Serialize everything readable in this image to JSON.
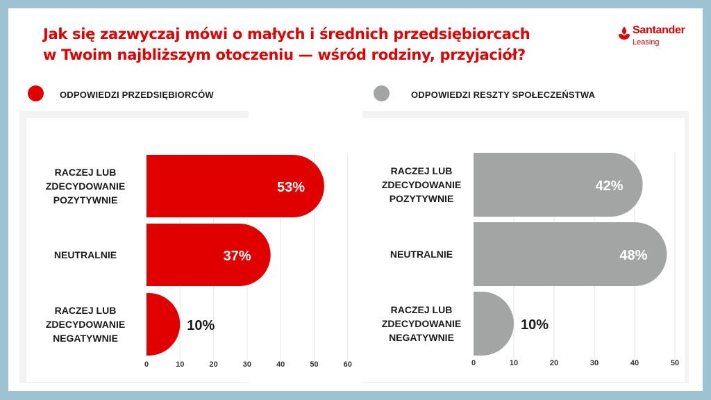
{
  "title": {
    "line1": "Jak się zazwyczaj mówi o małych i średnich przedsiębiorcach",
    "line2": "w Twoim najbliższym otoczeniu — wśród rodziny, przyjaciół?"
  },
  "logo": {
    "brand": "Santander",
    "sub": "Leasing",
    "icon": "flame-icon",
    "color": "#e00000"
  },
  "legend": {
    "left": "ODPOWIEDZI PRZEDSIĘBIORCÓW",
    "right": "ODPOWIEDZI RESZTY SPOŁECZEŃSTWA"
  },
  "colors": {
    "accent": "#e00000",
    "grey": "#a2a5a4",
    "background": "#9dc3d3"
  },
  "chart_data": [
    {
      "type": "bar",
      "orientation": "horizontal",
      "series_name": "ODPOWIEDZI PRZEDSIĘBIORCÓW",
      "categories": [
        [
          "RACZEJ LUB",
          "ZDECYDOWANIE",
          "POZYTYWNIE"
        ],
        [
          "NEUTRALNIE"
        ],
        [
          "RACZEJ LUB",
          "ZDECYDOWANIE",
          "NEGATYWNIE"
        ]
      ],
      "values": [
        53,
        37,
        10
      ],
      "labels": [
        "53%",
        "37%",
        "10%"
      ],
      "xlim": [
        0,
        60
      ],
      "xticks": [
        0,
        10,
        20,
        30,
        40,
        50,
        60
      ],
      "color": "#e00000",
      "grid": true
    },
    {
      "type": "bar",
      "orientation": "horizontal",
      "series_name": "ODPOWIEDZI RESZTY SPOŁECZEŃSTWA",
      "categories": [
        [
          "RACZEJ LUB",
          "ZDECYDOWANIE",
          "POZYTYWNIE"
        ],
        [
          "NEUTRALNIE"
        ],
        [
          "RACZEJ LUB",
          "ZDECYDOWANIE",
          "NEGATYWNIE"
        ]
      ],
      "values": [
        42,
        48,
        10
      ],
      "labels": [
        "42%",
        "48%",
        "10%"
      ],
      "xlim": [
        0,
        50
      ],
      "xticks": [
        0,
        10,
        20,
        30,
        40,
        50
      ],
      "color": "#a2a5a4",
      "grid": true
    }
  ]
}
